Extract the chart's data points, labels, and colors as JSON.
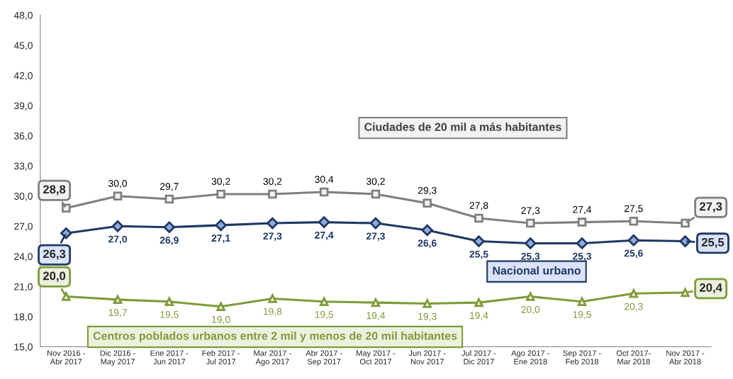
{
  "chart_data": {
    "type": "line",
    "categories": [
      "Nov 2016 -\nAbr 2017",
      "Dic 2016 -\nMay 2017",
      "Ene 2017 -\nJun 2017",
      "Feb 2017 -\nJul 2017",
      "Mar 2017 -\nAgo 2017",
      "Abr 2017 -\nSep 2017",
      "May 2017 -\nOct 2017",
      "Jun 2017 -\nNov 2017",
      "Jul 2017 -\nDic 2017",
      "Ago 2017 -\nEne 2018",
      "Sep 2017 -\nFeb 2018",
      "Oct 2017-\nMar 2018",
      "Nov 2017 -\nAbr 2018"
    ],
    "series": [
      {
        "name": "Ciudades de 20 mil a más habitantes",
        "color": "#7f7f7f",
        "marker": "square",
        "values": [
          28.8,
          30.0,
          29.7,
          30.2,
          30.2,
          30.4,
          30.2,
          29.3,
          27.8,
          27.3,
          27.4,
          27.5,
          27.3
        ],
        "value_labels": [
          "28,8",
          "30,0",
          "29,7",
          "30,2",
          "30,2",
          "30,4",
          "30,2",
          "29,3",
          "27,8",
          "27,3",
          "27,4",
          "27,5",
          "27,3"
        ]
      },
      {
        "name": "Nacional urbano",
        "color": "#1f3864",
        "marker": "diamond",
        "values": [
          26.3,
          27.0,
          26.9,
          27.1,
          27.3,
          27.4,
          27.3,
          26.6,
          25.5,
          25.3,
          25.3,
          25.6,
          25.5
        ],
        "value_labels": [
          "26,3",
          "27,0",
          "26,9",
          "27,1",
          "27,3",
          "27,4",
          "27,3",
          "26,6",
          "25,5",
          "25,3",
          "25,3",
          "25,6",
          "25,5"
        ]
      },
      {
        "name": "Centros poblados urbanos entre 2 mil y menos de 20 mil habitantes",
        "color": "#7f9a3a",
        "marker": "triangle",
        "values": [
          20.0,
          19.7,
          19.5,
          19.0,
          19.8,
          19.5,
          19.4,
          19.3,
          19.4,
          20.0,
          19.5,
          20.3,
          20.4
        ],
        "value_labels": [
          "20,0",
          "19,7",
          "19,5",
          "19,0",
          "19,8",
          "19,5",
          "19,4",
          "19,3",
          "19,4",
          "20,0",
          "19,5",
          "20,3",
          "20,4"
        ]
      }
    ],
    "ylim": [
      15,
      48
    ],
    "yticks": [
      {
        "value": 15,
        "label": "15,0"
      },
      {
        "value": 18,
        "label": "18,0"
      },
      {
        "value": 21,
        "label": "21,0"
      },
      {
        "value": 24,
        "label": "24,0"
      },
      {
        "value": 27,
        "label": "27,0"
      },
      {
        "value": 30,
        "label": "30,0"
      },
      {
        "value": 33,
        "label": "33,0"
      },
      {
        "value": 36,
        "label": "36,0"
      },
      {
        "value": 39,
        "label": "39,0"
      },
      {
        "value": 42,
        "label": "42,0"
      },
      {
        "value": 45,
        "label": "45,0"
      },
      {
        "value": 48,
        "label": "48,0"
      }
    ],
    "grid": false,
    "legend": false,
    "line_style": "solid"
  }
}
